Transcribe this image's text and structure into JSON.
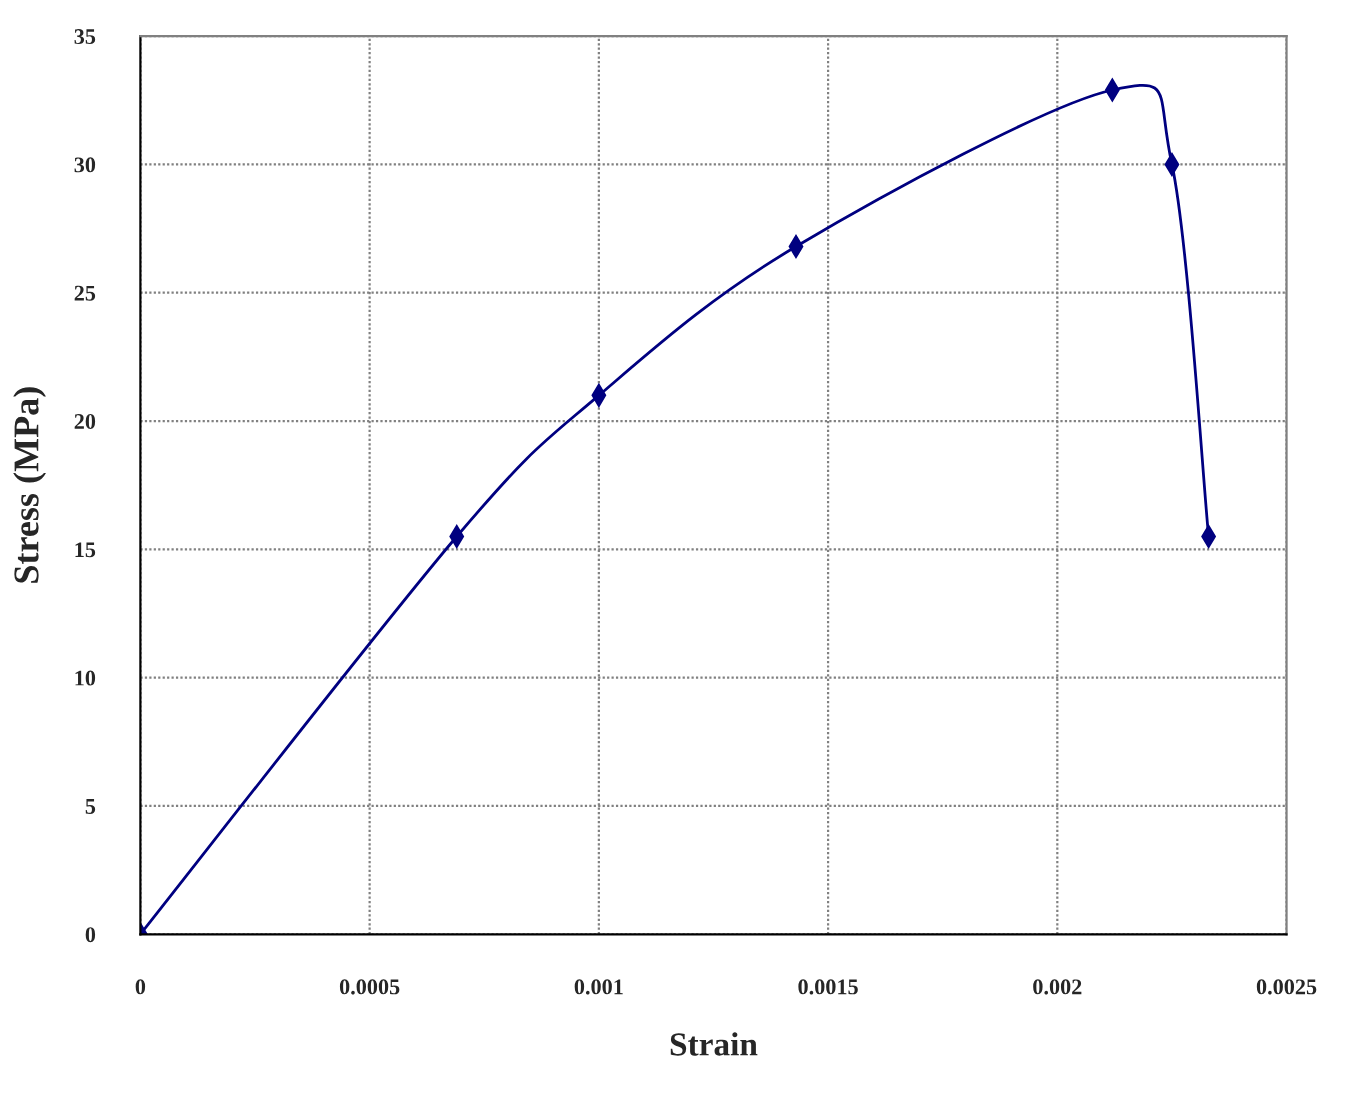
{
  "chart_data": {
    "type": "line",
    "xlabel": "Strain",
    "ylabel": "Stress (MPa)",
    "x": [
      0,
      0.00069,
      0.001,
      0.00143,
      0.00212,
      0.00225,
      0.00233
    ],
    "series": [
      {
        "color": "#000080",
        "values": [
          0,
          15.5,
          21,
          26.8,
          32.9,
          30,
          15.5
        ]
      }
    ],
    "xlim": [
      0,
      0.0025
    ],
    "xticks": [
      0,
      0.0005,
      0.001,
      0.0015,
      0.002,
      0.0025
    ],
    "ylim": [
      0,
      35
    ],
    "yticks": [
      0,
      5,
      10,
      15,
      20,
      25,
      30,
      35
    ],
    "grid": true,
    "legend": false,
    "marker": "diamond",
    "line_style": "solid"
  }
}
